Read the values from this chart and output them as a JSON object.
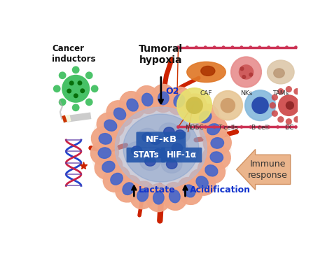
{
  "bg_color": "#ffffff",
  "cancer_inductors_label": "Cancer\ninductors",
  "tumoral_hypoxia_label": "Tumoral\nhypoxia",
  "o2_label": "O2",
  "nfkb_label": "NF-κB",
  "stats_only": "STATs",
  "hif_label": "HIF-1α",
  "lactate_label": "Lactate",
  "acidification_label": "Acidification",
  "immune_response_label": "Immune\nresponse",
  "cell_labels_r1": [
    "CAF",
    "NKs",
    "TAMs"
  ],
  "cell_labels_r2": [
    "MDSC",
    "T cells",
    "B cell",
    "DC"
  ],
  "glow_color": "#f5c0a0",
  "outer_cell_color": "#f0a090",
  "outer_nucleus_color": "#4466bb",
  "inner_mass_color": "#88aadd",
  "blood_vessel_color": "#cc2200",
  "blue_text_color": "#1133cc",
  "black_text_color": "#111111",
  "box_color": "#2255aa",
  "box_text_color": "#ffffff",
  "arrow_color": "#dd8855",
  "panel_border_color": "#cc3355"
}
